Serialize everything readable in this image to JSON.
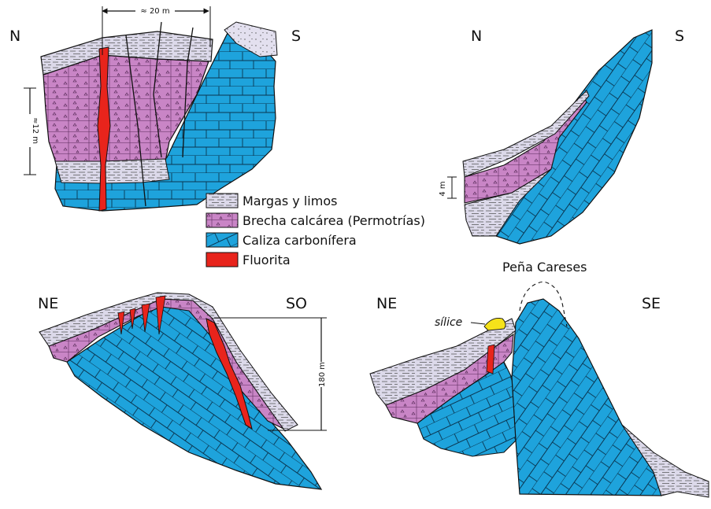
{
  "panels": {
    "top_left": {
      "orientation_left": "N",
      "orientation_right": "S",
      "width_scale": "≈ 20 m",
      "height_scale": "≈12 m"
    },
    "top_right": {
      "orientation_left": "N",
      "orientation_right": "S",
      "height_scale": "4 m"
    },
    "bottom_left": {
      "orientation_left": "NE",
      "orientation_right": "SO",
      "height_scale": "180 m"
    },
    "bottom_right": {
      "orientation_left": "NE",
      "orientation_right": "SE",
      "peak_label": "Peña Careses",
      "annotation": "sílice"
    }
  },
  "legend": [
    {
      "label": "Margas y limos",
      "pattern": "marl"
    },
    {
      "label": "Brecha calcárea (Permotrías)",
      "pattern": "breccia"
    },
    {
      "label": "Caliza carbonífera",
      "pattern": "limestone"
    },
    {
      "label": "Fluorita",
      "pattern": "fluorite"
    }
  ],
  "colors": {
    "limestone": "#1ea3dc",
    "breccia": "#c77fc4",
    "marl": "#d9d6e8",
    "fluorite": "#e8241c",
    "silice": "#f5e21a"
  }
}
